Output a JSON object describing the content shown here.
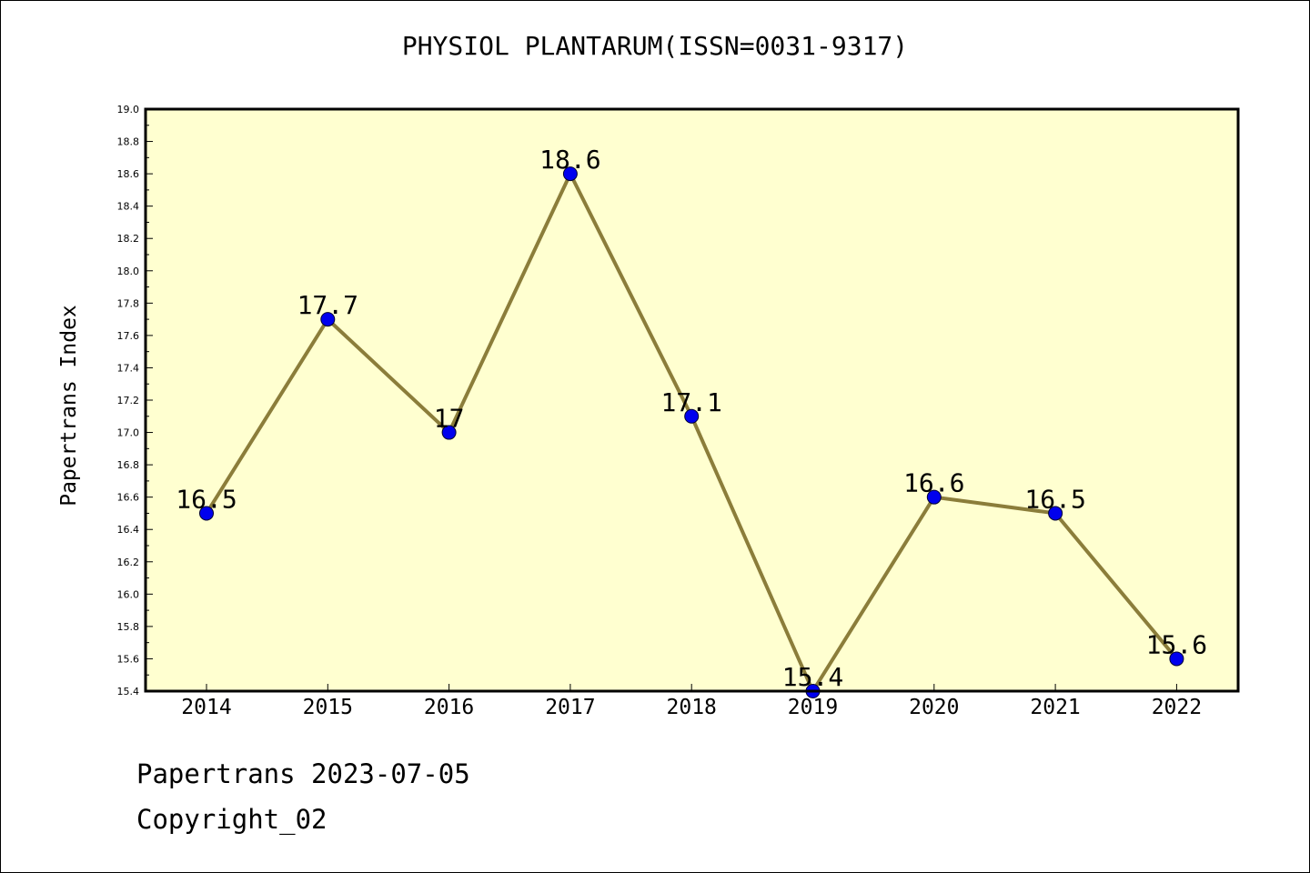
{
  "chart_data": {
    "type": "line",
    "title": "PHYSIOL PLANTARUM(ISSN=0031-9317)",
    "ylabel": "Papertrans Index",
    "xlabel": "",
    "categories": [
      "2014",
      "2015",
      "2016",
      "2017",
      "2018",
      "2019",
      "2020",
      "2021",
      "2022"
    ],
    "series": [
      {
        "values": [
          16.5,
          17.7,
          17.0,
          18.6,
          17.1,
          15.4,
          16.6,
          16.5,
          15.6
        ]
      }
    ],
    "data_labels": [
      "16.5",
      "17.7",
      "17",
      "18.6",
      "17.1",
      "15.4",
      "16.6",
      "16.5",
      "15.6"
    ],
    "ylim": [
      15.4,
      19.0
    ],
    "yticks": [
      "15.4",
      "15.6",
      "15.8",
      "16.0",
      "16.2",
      "16.4",
      "16.6",
      "16.8",
      "17.0",
      "17.2",
      "17.4",
      "17.6",
      "17.8",
      "18.0",
      "18.2",
      "18.4",
      "18.6",
      "18.8",
      "19.0"
    ],
    "grid": false,
    "colors": {
      "plot_background": "#ffffd0",
      "line": "#8b7d3a",
      "marker": "#0000ee"
    }
  },
  "footer": {
    "line1": "Papertrans 2023-07-05",
    "line2": "Copyright_02"
  }
}
